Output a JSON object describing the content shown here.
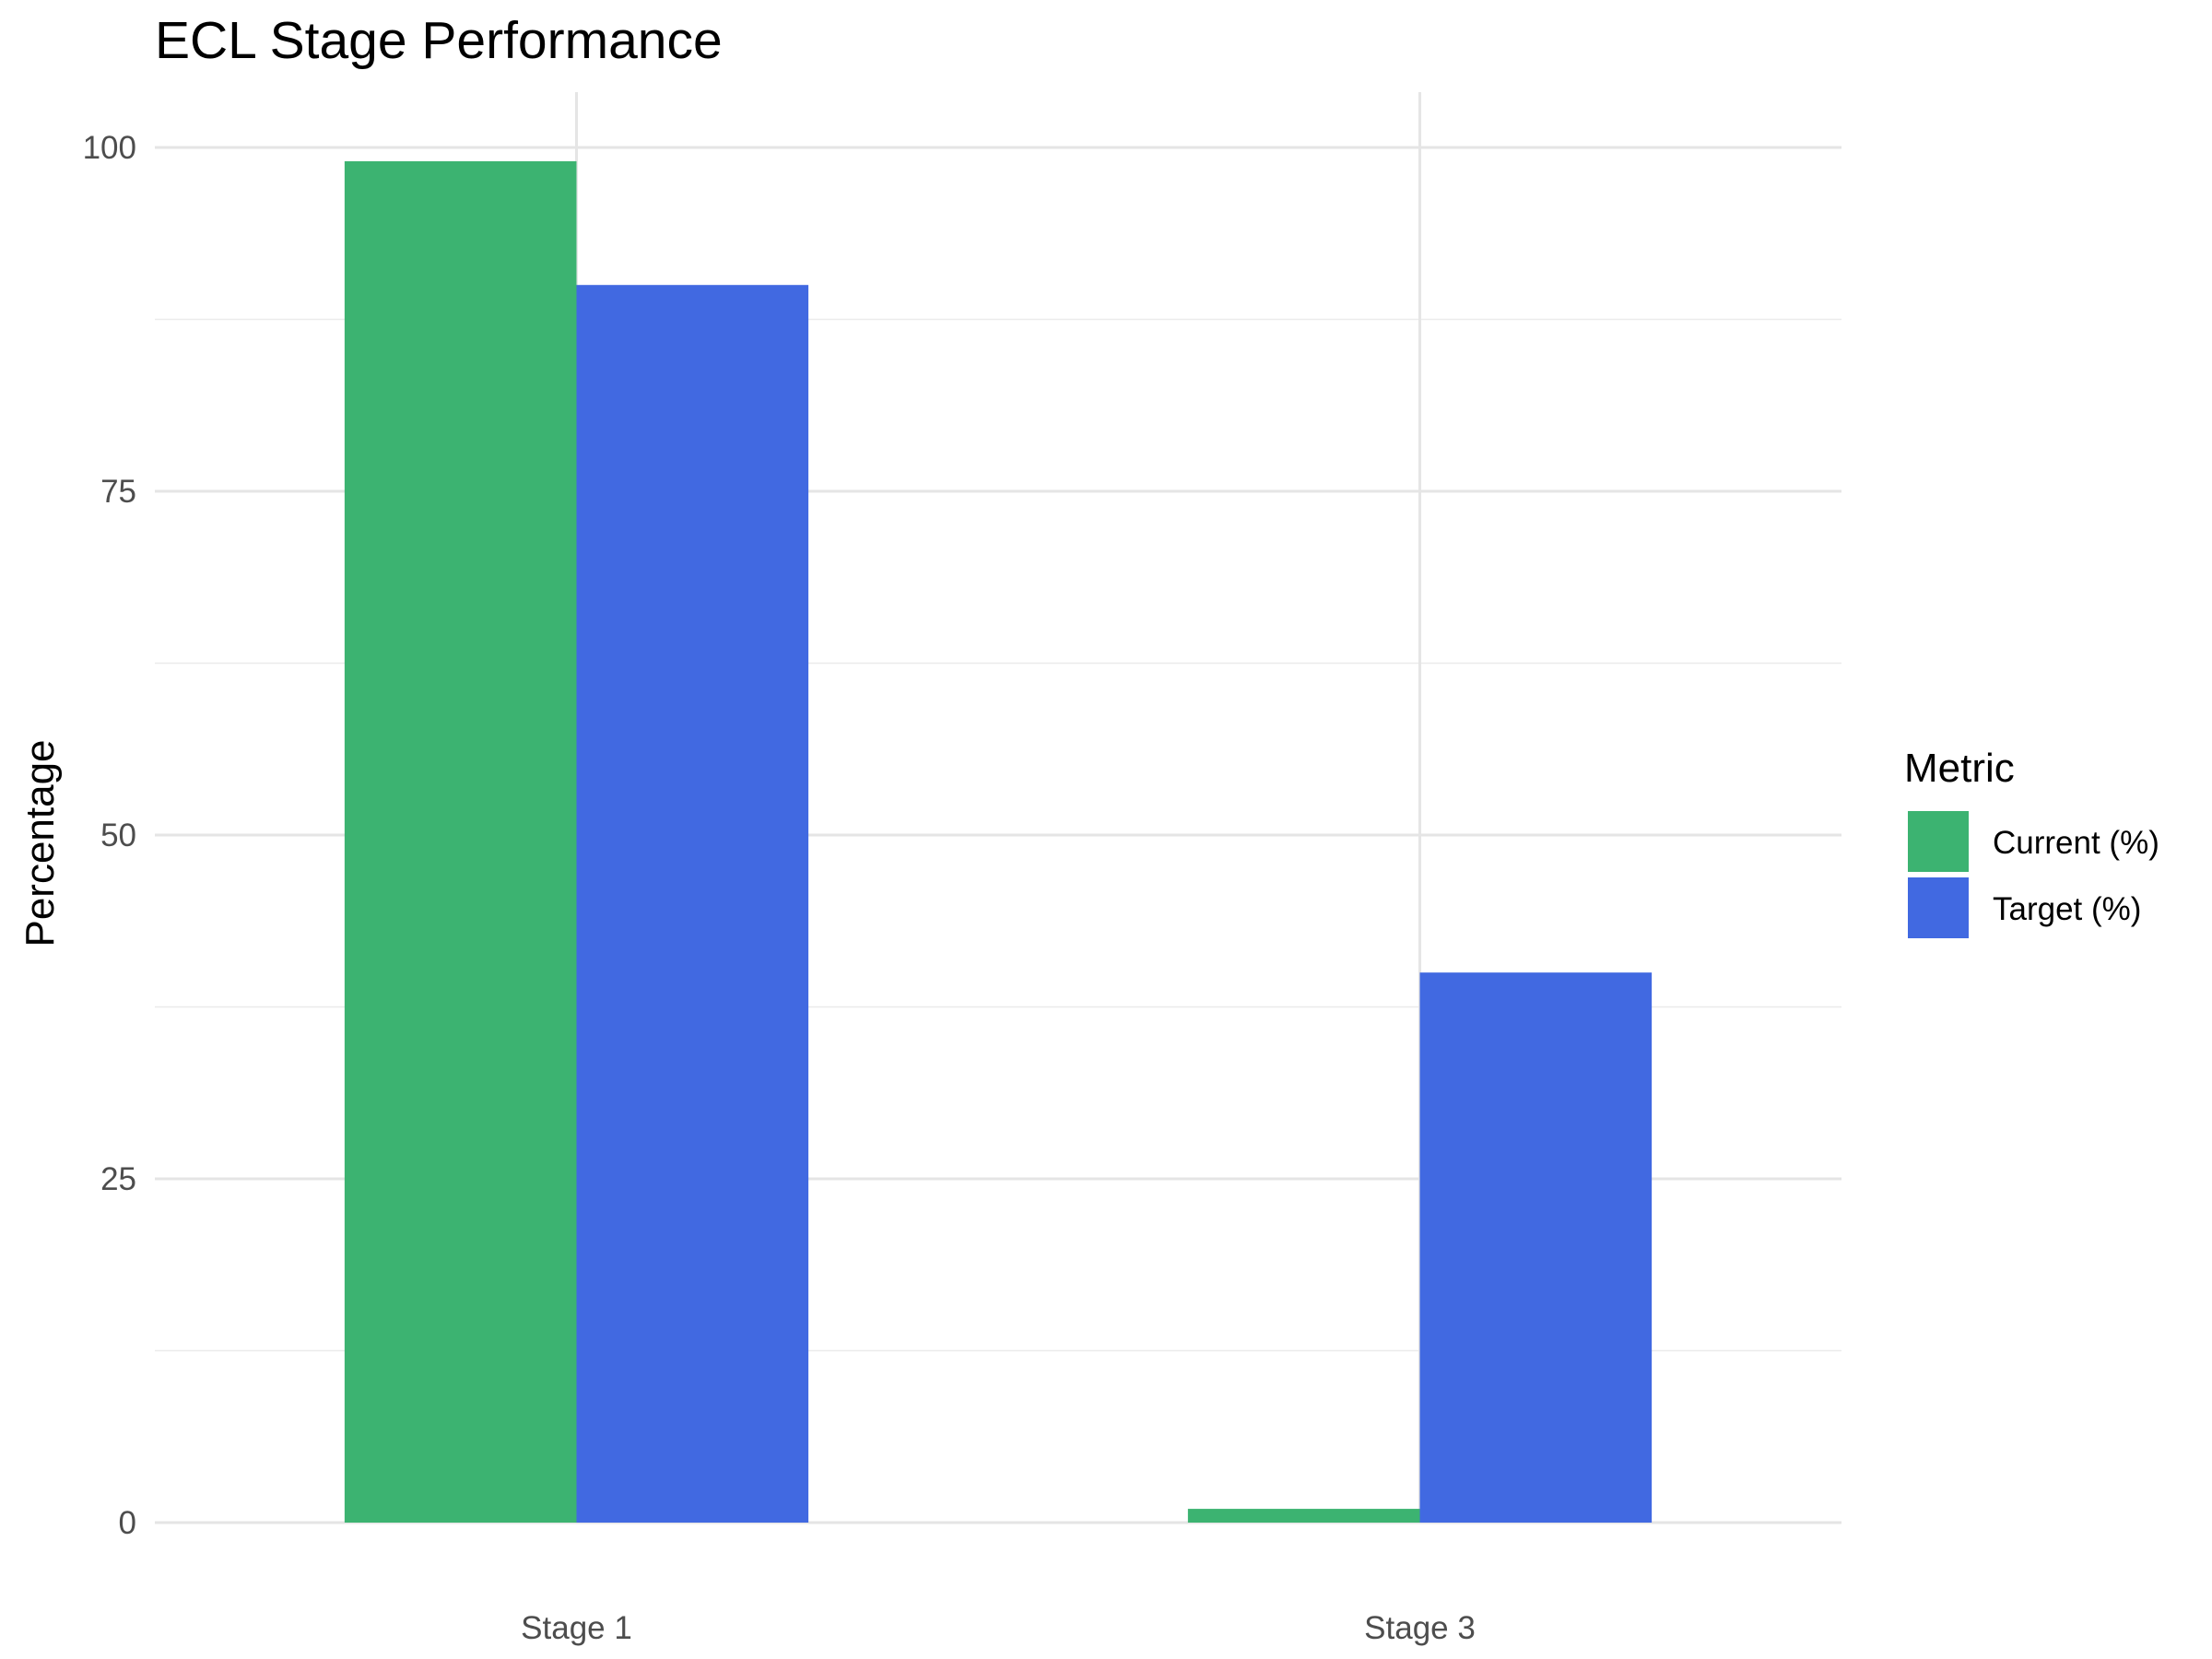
{
  "chart_data": {
    "type": "bar",
    "title": "ECL Stage Performance",
    "xlabel": "",
    "ylabel": "Percentage",
    "categories": [
      "Stage 1",
      "Stage 3"
    ],
    "series": [
      {
        "name": "Current (%)",
        "color": "#3CB371",
        "values": [
          99,
          1
        ]
      },
      {
        "name": "Target (%)",
        "color": "#4169E1",
        "values": [
          90,
          40
        ]
      }
    ],
    "ylim": [
      0,
      100
    ],
    "yticks": [
      0,
      25,
      50,
      75,
      100
    ],
    "grid": true,
    "legend": {
      "title": "Metric",
      "position": "right"
    }
  }
}
